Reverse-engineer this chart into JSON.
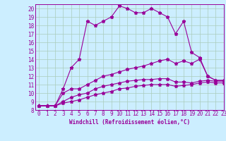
{
  "xlabel": "Windchill (Refroidissement éolien,°C)",
  "background_color": "#cceeff",
  "grid_color": "#aaccbb",
  "line_color": "#990099",
  "xlim": [
    -0.5,
    23
  ],
  "ylim": [
    8,
    20.5
  ],
  "xticks": [
    0,
    1,
    2,
    3,
    4,
    5,
    6,
    7,
    8,
    9,
    10,
    11,
    12,
    13,
    14,
    15,
    16,
    17,
    18,
    19,
    20,
    21,
    22,
    23
  ],
  "yticks": [
    8,
    9,
    10,
    11,
    12,
    13,
    14,
    15,
    16,
    17,
    18,
    19,
    20
  ],
  "line1_x": [
    0,
    1,
    2,
    3,
    4,
    5,
    6,
    7,
    8,
    9,
    10,
    11,
    12,
    13,
    14,
    15,
    16,
    17,
    18,
    19,
    20,
    21,
    22,
    23
  ],
  "line1_y": [
    8.5,
    8.5,
    8.5,
    10.5,
    13.0,
    14.0,
    18.5,
    18.0,
    18.5,
    19.0,
    20.3,
    20.0,
    19.5,
    19.5,
    20.0,
    19.5,
    19.0,
    17.0,
    18.5,
    14.8,
    14.2,
    12.0,
    11.5,
    11.5
  ],
  "line2_x": [
    0,
    1,
    2,
    3,
    4,
    5,
    6,
    7,
    8,
    9,
    10,
    11,
    12,
    13,
    14,
    15,
    16,
    17,
    18,
    19,
    20,
    21,
    22,
    23
  ],
  "line2_y": [
    8.5,
    8.5,
    8.5,
    10.0,
    10.5,
    10.5,
    11.0,
    11.5,
    12.0,
    12.2,
    12.5,
    12.8,
    13.0,
    13.2,
    13.5,
    13.8,
    14.0,
    13.5,
    13.8,
    13.5,
    14.0,
    12.0,
    11.5,
    11.5
  ],
  "line3_x": [
    0,
    1,
    2,
    3,
    4,
    5,
    6,
    7,
    8,
    9,
    10,
    11,
    12,
    13,
    14,
    15,
    16,
    17,
    18,
    19,
    20,
    21,
    22,
    23
  ],
  "line3_y": [
    8.5,
    8.5,
    8.5,
    9.0,
    9.5,
    9.8,
    10.0,
    10.5,
    10.8,
    11.0,
    11.2,
    11.4,
    11.5,
    11.6,
    11.6,
    11.7,
    11.7,
    11.3,
    11.3,
    11.2,
    11.4,
    11.5,
    11.4,
    11.4
  ],
  "line4_x": [
    0,
    1,
    2,
    3,
    4,
    5,
    6,
    7,
    8,
    9,
    10,
    11,
    12,
    13,
    14,
    15,
    16,
    17,
    18,
    19,
    20,
    21,
    22,
    23
  ],
  "line4_y": [
    8.5,
    8.5,
    8.5,
    8.8,
    9.0,
    9.2,
    9.5,
    9.8,
    10.0,
    10.2,
    10.5,
    10.6,
    10.8,
    10.9,
    11.0,
    11.0,
    11.0,
    10.8,
    10.9,
    11.0,
    11.2,
    11.3,
    11.2,
    11.2
  ],
  "tick_fontsize": 5.5,
  "xlabel_fontsize": 5.5
}
